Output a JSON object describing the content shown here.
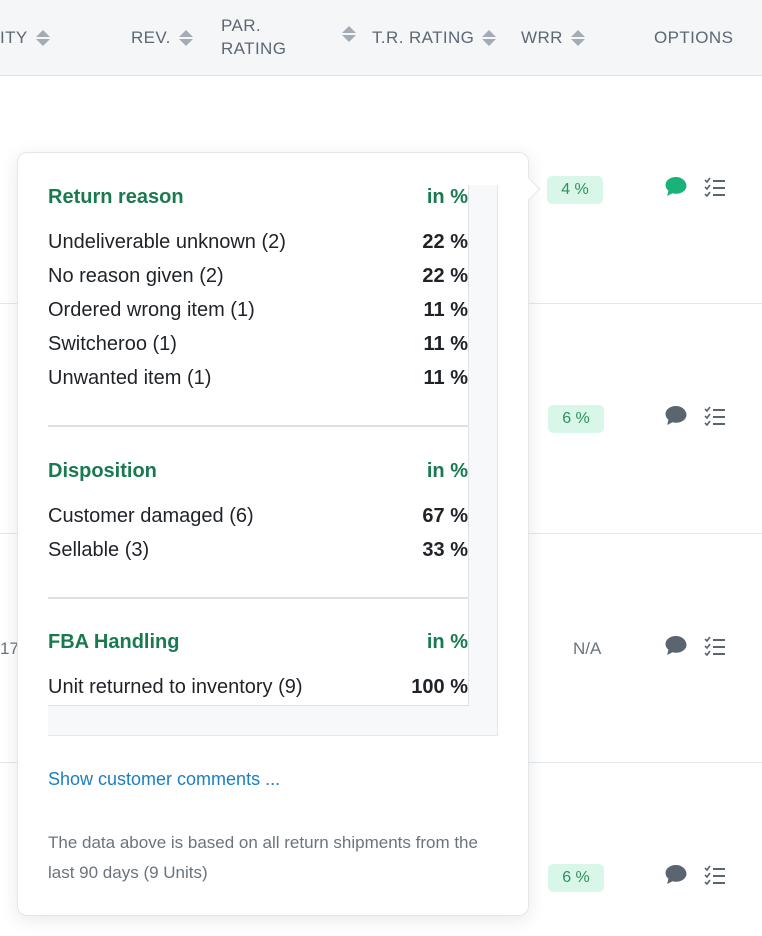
{
  "header": {
    "col_quantity": "ITY",
    "col_rev": "REV.",
    "col_par_rating_1": "PAR.",
    "col_par_rating_2": "RATING",
    "col_tr_rating": "T.R. RATING",
    "col_wrr": "WRR",
    "col_options": "OPTIONS"
  },
  "rows": [
    {
      "wrr": "4 %",
      "comment_icon": "comment-icon",
      "comment_color": "#19b37a"
    },
    {
      "wrr": "6 %",
      "comment_icon": "comment-icon",
      "comment_color": "#5a6570"
    },
    {
      "wrr": "N/A",
      "partial_left_value": "17",
      "comment_icon": "comment-icon",
      "comment_color": "#5a6570"
    },
    {
      "wrr": "6 %",
      "comment_icon": "comment-icon",
      "comment_color": "#5a6570"
    }
  ],
  "popover": {
    "return_reason": {
      "title": "Return reason",
      "unit": "in %",
      "items": [
        {
          "label": "Undeliverable unknown (2)",
          "value": "22 %"
        },
        {
          "label": "No reason given (2)",
          "value": "22 %"
        },
        {
          "label": "Ordered wrong item (1)",
          "value": "11 %"
        },
        {
          "label": "Switcheroo (1)",
          "value": "11 %"
        },
        {
          "label": "Unwanted item (1)",
          "value": "11 %"
        }
      ]
    },
    "disposition": {
      "title": "Disposition",
      "unit": "in %",
      "items": [
        {
          "label": "Customer damaged (6)",
          "value": "67 %"
        },
        {
          "label": "Sellable (3)",
          "value": "33 %"
        }
      ]
    },
    "fba_handling": {
      "title": "FBA Handling",
      "unit": "in %",
      "items": [
        {
          "label": "Unit returned to inventory (9)",
          "value": "100 %"
        }
      ]
    },
    "show_comments": "Show customer comments ...",
    "note": "The data above is based on all return shipments from the last 90 days (9 Units)"
  },
  "colors": {
    "accent_green": "#197a50",
    "badge_bg": "#d9f7e8",
    "link_blue": "#1a7fc1"
  }
}
